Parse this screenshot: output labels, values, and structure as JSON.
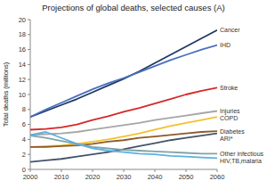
{
  "chart_data": {
    "type": "line",
    "title": "Projections of global deaths, selected causes (A)",
    "y_label": "Total deaths (millions)",
    "x": [
      2000,
      2005,
      2010,
      2015,
      2020,
      2025,
      2030,
      2035,
      2040,
      2045,
      2050,
      2055,
      2060
    ],
    "xlim": [
      2000,
      2060
    ],
    "xticks": [
      2000,
      2010,
      2020,
      2030,
      2040,
      2050,
      2060
    ],
    "ylim": [
      0,
      20
    ],
    "yticks": [
      0,
      2,
      4,
      6,
      8,
      10,
      12,
      14,
      16,
      18,
      20
    ],
    "grid": false,
    "series": [
      {
        "name": "Cancer",
        "color": "#1f3864",
        "values": [
          7,
          7.8,
          8.6,
          9.4,
          10.3,
          11.2,
          12.1,
          13.1,
          14.2,
          15.3,
          16.4,
          17.5,
          18.6
        ]
      },
      {
        "name": "IHD",
        "color": "#4a6fbf",
        "values": [
          7,
          8,
          8.9,
          9.8,
          10.7,
          11.5,
          12.2,
          13,
          13.8,
          14.6,
          15.3,
          16,
          16.6
        ]
      },
      {
        "name": "Stroke",
        "color": "#d62728",
        "values": [
          5.3,
          5.4,
          5.6,
          6.0,
          6.6,
          7.1,
          7.7,
          8.2,
          8.8,
          9.4,
          10,
          10.5,
          10.9
        ]
      },
      {
        "name": "Injuries",
        "color": "#a6a6a6",
        "values": [
          4.6,
          4.7,
          4.8,
          5.0,
          5.3,
          5.6,
          5.9,
          6.2,
          6.6,
          6.9,
          7.2,
          7.5,
          7.8
        ]
      },
      {
        "name": "COPD",
        "color": "#f2c12e",
        "values": [
          3.0,
          3.1,
          3.2,
          3.4,
          3.7,
          4.0,
          4.4,
          4.8,
          5.3,
          5.8,
          6.2,
          6.6,
          7.0
        ]
      },
      {
        "name": "Diabetes",
        "color": "#8b5a2b",
        "values": [
          3.0,
          3.0,
          3.1,
          3.2,
          3.4,
          3.7,
          3.9,
          4.2,
          4.4,
          4.6,
          4.8,
          5.0,
          5.1
        ]
      },
      {
        "name": "ARI*",
        "color": "#44546a",
        "values": [
          1.0,
          1.2,
          1.4,
          1.7,
          2.0,
          2.3,
          2.7,
          3.1,
          3.5,
          3.9,
          4.2,
          4.5,
          4.8
        ]
      },
      {
        "name": "Other infectious",
        "color": "#7fa3a8",
        "values": [
          4.5,
          4.2,
          3.8,
          3.4,
          3.0,
          2.8,
          2.6,
          2.5,
          2.4,
          2.3,
          2.2,
          2.1,
          2.1
        ]
      },
      {
        "name": "HIV,TB,malaria",
        "color": "#5bb0e0",
        "values": [
          4.6,
          5.0,
          4.2,
          3.4,
          2.8,
          2.5,
          2.3,
          2.1,
          2.0,
          1.8,
          1.7,
          1.6,
          1.5
        ]
      }
    ]
  }
}
